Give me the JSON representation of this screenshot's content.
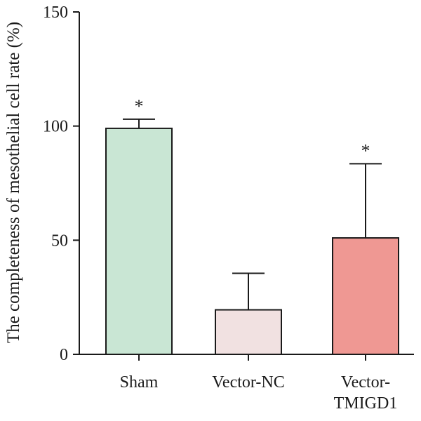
{
  "chart_data": {
    "type": "bar",
    "title": "",
    "xlabel": "",
    "ylabel": "The completeness of mesothelial cell rate (%)",
    "ylim": [
      0,
      150
    ],
    "yticks": [
      "0",
      "50",
      "100",
      "150"
    ],
    "categories": [
      "Sham",
      "Vector-NC",
      "Vector-TMIGD1"
    ],
    "category_label_lines": [
      [
        "Sham"
      ],
      [
        "Vector-NC"
      ],
      [
        "Vector-",
        "TMIGD1"
      ]
    ],
    "values": [
      99,
      19.5,
      51
    ],
    "error_upper": [
      103,
      35.5,
      83.5
    ],
    "significance": [
      "*",
      "",
      "*"
    ],
    "bar_colors": [
      "#c9e6d4",
      "#f1e1e1",
      "#ef9893"
    ],
    "bar_stroke": "#1a1a1a",
    "grid": false,
    "legend": "none"
  }
}
